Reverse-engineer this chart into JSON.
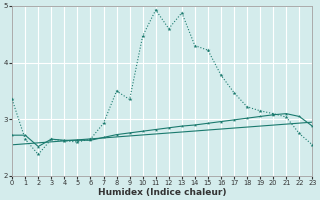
{
  "xlabel": "Humidex (Indice chaleur)",
  "background_color": "#d4ecec",
  "grid_color": "#ffffff",
  "line_color": "#1a7a6e",
  "xlim": [
    0,
    23
  ],
  "ylim": [
    2,
    5
  ],
  "yticks": [
    2,
    3,
    4,
    5
  ],
  "xticks": [
    0,
    1,
    2,
    3,
    4,
    5,
    6,
    7,
    8,
    9,
    10,
    11,
    12,
    13,
    14,
    15,
    16,
    17,
    18,
    19,
    20,
    21,
    22,
    23
  ],
  "series1_x": [
    0,
    1,
    2,
    3,
    4,
    5,
    6,
    7,
    8,
    9,
    10,
    11,
    12,
    13,
    14,
    15,
    16,
    17,
    18,
    19,
    20,
    21,
    22,
    23
  ],
  "series1_y": [
    3.35,
    2.65,
    2.38,
    2.65,
    2.62,
    2.6,
    2.65,
    2.93,
    3.5,
    3.35,
    4.47,
    4.93,
    4.6,
    4.88,
    4.3,
    4.22,
    3.78,
    3.47,
    3.22,
    3.15,
    3.1,
    3.04,
    2.75,
    2.55
  ],
  "series2_x": [
    0,
    1,
    2,
    3,
    4,
    5,
    6,
    7,
    8,
    9,
    10,
    11,
    12,
    13,
    14,
    15,
    16,
    17,
    18,
    19,
    20,
    21,
    22,
    23
  ],
  "series2_y": [
    2.72,
    2.72,
    2.52,
    2.65,
    2.63,
    2.63,
    2.63,
    2.68,
    2.73,
    2.76,
    2.79,
    2.82,
    2.85,
    2.88,
    2.9,
    2.93,
    2.96,
    2.99,
    3.02,
    3.05,
    3.08,
    3.1,
    3.05,
    2.88
  ],
  "series3_x": [
    0,
    23
  ],
  "series3_y": [
    2.55,
    2.95
  ]
}
